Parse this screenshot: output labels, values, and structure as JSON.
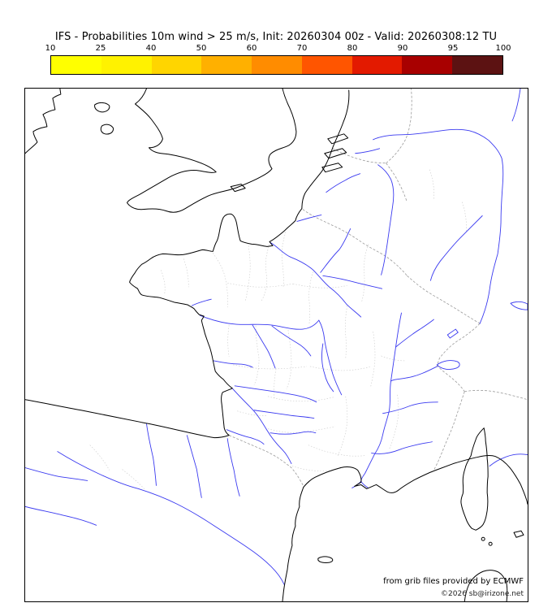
{
  "title": "IFS - Probabilities 10m wind > 25 m/s, Init: 20260304 00z - Valid: 20260308:12 TU",
  "colorbar": {
    "tick_labels": [
      "10",
      "25",
      "40",
      "50",
      "60",
      "70",
      "80",
      "90",
      "95",
      "100"
    ],
    "segment_colors": [
      "#ffff00",
      "#fff200",
      "#ffd500",
      "#ffb000",
      "#ff8c00",
      "#ff5500",
      "#e31a00",
      "#a80000",
      "#5c1212"
    ]
  },
  "map": {
    "credit_line1": "from grib files provided by ECMWF",
    "credit_line2": "©2026 sb@irizone.net",
    "colors": {
      "coastline": "#000000",
      "river": "#3a3af0",
      "national_border": "#9a9a9a",
      "admin_boundary": "#c9c9c9",
      "sea": "#ffffff"
    }
  }
}
